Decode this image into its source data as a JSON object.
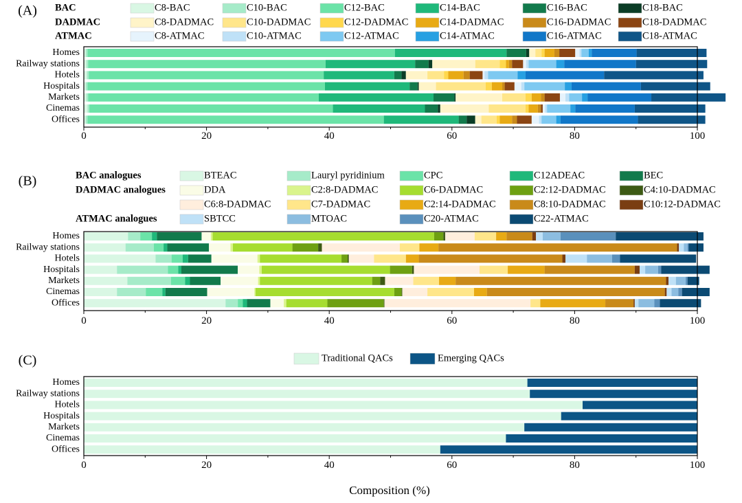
{
  "figure": {
    "xlabel": "Composition (%)"
  },
  "chart_data": [
    {
      "panel_label": "(A)",
      "type": "bar",
      "orientation": "horizontal-stacked",
      "xlim": [
        0,
        100
      ],
      "xticks": [
        0,
        20,
        40,
        60,
        80,
        100
      ],
      "categories": [
        "Homes",
        "Railway stations",
        "Hotels",
        "Hospitals",
        "Markets",
        "Cinemas",
        "Offices"
      ],
      "legend_groups": [
        {
          "label": "BAC",
          "entries": [
            0,
            1,
            2,
            3,
            4,
            5
          ]
        },
        {
          "label": "DADMAC",
          "entries": [
            6,
            7,
            8,
            9,
            10,
            11
          ]
        },
        {
          "label": "ATMAC",
          "entries": [
            12,
            13,
            14,
            15,
            16,
            17
          ]
        }
      ],
      "series": [
        {
          "name": "C8-BAC",
          "color": "#d9f7e4",
          "values": [
            0.3,
            0.4,
            0.5,
            0.3,
            0.4,
            0.6,
            0.3
          ]
        },
        {
          "name": "C10-BAC",
          "color": "#a6ebc9",
          "values": [
            0.3,
            0.3,
            0.3,
            0.3,
            0.3,
            0.3,
            0.3
          ]
        },
        {
          "name": "C12-BAC",
          "color": "#6be3a8",
          "values": [
            50.1,
            38.7,
            38.3,
            38.7,
            37.6,
            39.7,
            48.3
          ]
        },
        {
          "name": "C14-BAC",
          "color": "#1fb87a",
          "values": [
            18.2,
            14.6,
            11.5,
            13.8,
            18.7,
            15.0,
            12.2
          ]
        },
        {
          "name": "C16-BAC",
          "color": "#127a4c",
          "values": [
            3.2,
            2.2,
            1.2,
            1.3,
            3.4,
            2.1,
            1.3
          ]
        },
        {
          "name": "C18-BAC",
          "color": "#0b3d26",
          "values": [
            0.5,
            0.6,
            0.7,
            0.2,
            0.2,
            0.4,
            1.4
          ]
        },
        {
          "name": "C8-DADMAC",
          "color": "#fff4c8",
          "values": [
            1.0,
            7.0,
            3.5,
            2.8,
            7.6,
            7.9,
            1.0
          ]
        },
        {
          "name": "C10-DADMAC",
          "color": "#ffe68a",
          "values": [
            1.0,
            4.0,
            2.7,
            8.1,
            3.8,
            6.0,
            2.5
          ]
        },
        {
          "name": "C12-DADMAC",
          "color": "#ffd84d",
          "values": [
            0.5,
            1.0,
            0.7,
            1.0,
            1.0,
            0.5,
            0.5
          ]
        },
        {
          "name": "C14-DADMAC",
          "color": "#e8aa14",
          "values": [
            1.6,
            0.5,
            2.5,
            1.7,
            1.5,
            1.5,
            2.0
          ]
        },
        {
          "name": "C16-DADMAC",
          "color": "#c98a1a",
          "values": [
            0.8,
            0.5,
            1.0,
            0.4,
            0.6,
            0.5,
            0.8
          ]
        },
        {
          "name": "C18-DADMAC",
          "color": "#8b4513",
          "values": [
            2.6,
            1.8,
            2.1,
            1.6,
            2.5,
            0.3,
            2.4
          ]
        },
        {
          "name": "C8-ATMAC",
          "color": "#e6f3fc",
          "values": [
            0.7,
            0.5,
            0.3,
            1.1,
            0.9,
            0.4,
            1.2
          ]
        },
        {
          "name": "C10-ATMAC",
          "color": "#bfe1f7",
          "values": [
            0.3,
            0.4,
            0.6,
            0.5,
            0.6,
            0.3,
            0.4
          ]
        },
        {
          "name": "C12-ATMAC",
          "color": "#7ec9f1",
          "values": [
            1.2,
            4.5,
            4.8,
            6.6,
            2.1,
            3.8,
            2.4
          ]
        },
        {
          "name": "C14-ATMAC",
          "color": "#27a0e2",
          "values": [
            0.5,
            1.3,
            1.3,
            1.1,
            0.9,
            0.8,
            0.7
          ]
        },
        {
          "name": "C16-ATMAC",
          "color": "#1177c8",
          "values": [
            7.3,
            11.7,
            12.8,
            11.3,
            10.4,
            9.7,
            12.6
          ]
        },
        {
          "name": "C18-ATMAC",
          "color": "#0f5587",
          "values": [
            11.4,
            11.6,
            16.2,
            11.3,
            12.1,
            11.5,
            11.0
          ]
        }
      ]
    },
    {
      "panel_label": "(B)",
      "type": "bar",
      "orientation": "horizontal-stacked",
      "xlim": [
        0,
        100
      ],
      "xticks": [
        0,
        20,
        40,
        60,
        80,
        100
      ],
      "categories": [
        "Homes",
        "Railway stations",
        "Hotels",
        "Hospitals",
        "Markets",
        "Cinemas",
        "Offices"
      ],
      "legend_groups": [
        {
          "label": "BAC analogues",
          "entries": [
            0,
            1,
            2,
            3,
            4
          ]
        },
        {
          "label": "DADMAC analogues",
          "entries": [
            5,
            6,
            7,
            8,
            9
          ]
        },
        {
          "label": "",
          "entries": [
            10,
            11,
            12,
            13,
            14
          ]
        },
        {
          "label": "ATMAC analogues",
          "entries": [
            15,
            16,
            17,
            18
          ]
        }
      ],
      "series": [
        {
          "name": "BTEAC",
          "color": "#d9f7e4",
          "values": [
            7.2,
            6.8,
            11.7,
            5.4,
            7.1,
            5.4,
            23.1
          ]
        },
        {
          "name": "Lauryl pyridinium",
          "color": "#a6ebc9",
          "values": [
            2.0,
            4.6,
            2.6,
            8.3,
            7.1,
            4.7,
            2.0
          ]
        },
        {
          "name": "CPC",
          "color": "#6be3a8",
          "values": [
            1.9,
            1.6,
            1.8,
            1.7,
            2.3,
            2.7,
            0.8
          ]
        },
        {
          "name": "C12ADEAC",
          "color": "#1fb87a",
          "values": [
            0.8,
            0.6,
            0.9,
            0.5,
            0.8,
            0.5,
            0.7
          ]
        },
        {
          "name": "BEC",
          "color": "#127a4c",
          "values": [
            7.3,
            6.8,
            3.8,
            9.2,
            5.0,
            6.8,
            3.8
          ]
        },
        {
          "name": "DDA",
          "color": "#fafce6",
          "values": [
            1.5,
            3.5,
            7.5,
            3.5,
            6.1,
            7.7,
            2.2
          ]
        },
        {
          "name": "C2:8-DADMAC",
          "color": "#daf48c",
          "values": [
            0.3,
            0.4,
            0.4,
            0.4,
            0.3,
            0.2,
            0.4
          ]
        },
        {
          "name": "C6-DADMAC",
          "color": "#a6dd30",
          "values": [
            36.1,
            9.7,
            13.3,
            20.9,
            18.3,
            22.6,
            6.7
          ]
        },
        {
          "name": "C2:12-DADMAC",
          "color": "#6ea012",
          "values": [
            1.5,
            4.2,
            1.0,
            3.6,
            1.3,
            1.2,
            9.2
          ]
        },
        {
          "name": "C4:10-DADMAC",
          "color": "#3d5a14",
          "values": [
            0.3,
            0.6,
            0.2,
            0.3,
            0.8,
            0.1,
            0.1
          ]
        },
        {
          "name": "C6:8-DADMAC",
          "color": "#ffeedd",
          "values": [
            4.8,
            12.7,
            4.1,
            10.7,
            4.6,
            4.1,
            23.8
          ]
        },
        {
          "name": "C7-DADMAC",
          "color": "#ffe68a",
          "values": [
            3.5,
            3.2,
            5.2,
            4.6,
            4.2,
            7.6,
            1.6
          ]
        },
        {
          "name": "C2:14-DADMAC",
          "color": "#e8aa14",
          "values": [
            1.7,
            3.1,
            2.1,
            6.0,
            2.7,
            2.1,
            10.6
          ]
        },
        {
          "name": "C8:10-DADMAC",
          "color": "#c98a1a",
          "values": [
            4.2,
            38.9,
            23.4,
            14.7,
            34.3,
            29.0,
            4.6
          ]
        },
        {
          "name": "C10:12-DADMAC",
          "color": "#7a3e12",
          "values": [
            0.6,
            0.3,
            0.5,
            0.8,
            0.4,
            0.3,
            0.2
          ]
        },
        {
          "name": "SBTCC",
          "color": "#bfe1f7",
          "values": [
            1.1,
            0.8,
            3.5,
            0.9,
            1.2,
            0.8,
            0.6
          ]
        },
        {
          "name": "MTOAC",
          "color": "#8cbde0",
          "values": [
            2.9,
            0.6,
            4.1,
            2.1,
            1.6,
            1.1,
            2.6
          ]
        },
        {
          "name": "C20-ATMAC",
          "color": "#5a90bc",
          "values": [
            9.0,
            0.2,
            1.3,
            0.5,
            0.3,
            0.6,
            0.9
          ]
        },
        {
          "name": "C22-ATMAC",
          "color": "#0b4a73",
          "values": [
            14.3,
            2.4,
            12.4,
            7.9,
            1.9,
            4.5,
            6.7
          ]
        }
      ]
    },
    {
      "panel_label": "(C)",
      "type": "bar",
      "orientation": "horizontal-stacked",
      "xlim": [
        0,
        100
      ],
      "xticks": [
        0,
        20,
        40,
        60,
        80,
        100
      ],
      "categories": [
        "Homes",
        "Railway stations",
        "Hotels",
        "Hospitals",
        "Markets",
        "Cinemas",
        "Offices"
      ],
      "series": [
        {
          "name": "Traditional QACs",
          "color": "#d9f7e4",
          "values": [
            72.3,
            72.7,
            81.3,
            77.8,
            71.8,
            68.8,
            58.1
          ]
        },
        {
          "name": "Emerging QACs",
          "color": "#0c5586",
          "values": [
            27.7,
            27.3,
            18.7,
            22.2,
            28.2,
            31.2,
            41.9
          ]
        }
      ]
    }
  ]
}
